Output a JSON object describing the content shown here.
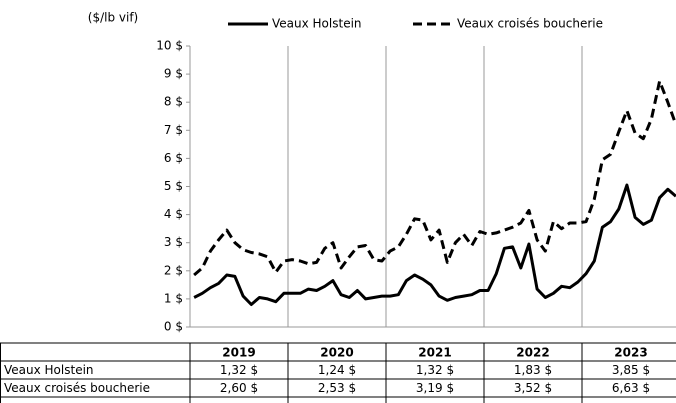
{
  "chart_data": {
    "type": "line",
    "ylabel": "($/lb vif)",
    "ylim": [
      0,
      10
    ],
    "yticks": [
      {
        "value": 0,
        "label": "0 $"
      },
      {
        "value": 1,
        "label": "1 $"
      },
      {
        "value": 2,
        "label": "2 $"
      },
      {
        "value": 3,
        "label": "3 $"
      },
      {
        "value": 4,
        "label": "4 $"
      },
      {
        "value": 5,
        "label": "5 $"
      },
      {
        "value": 6,
        "label": "6 $"
      },
      {
        "value": 7,
        "label": "7 $"
      },
      {
        "value": 8,
        "label": "8 $"
      },
      {
        "value": 9,
        "label": "9 $"
      },
      {
        "value": 10,
        "label": "10 $"
      }
    ],
    "series": [
      {
        "name": "Veaux Holstein",
        "color": "#000000",
        "dash": false,
        "values": [
          1.05,
          1.2,
          1.4,
          1.55,
          1.85,
          1.8,
          1.1,
          0.8,
          1.05,
          1.0,
          0.9,
          1.2,
          1.2,
          1.2,
          1.35,
          1.3,
          1.45,
          1.65,
          1.15,
          1.05,
          1.3,
          1.0,
          1.05,
          1.1,
          1.1,
          1.15,
          1.65,
          1.85,
          1.7,
          1.5,
          1.1,
          0.95,
          1.05,
          1.1,
          1.15,
          1.3,
          1.3,
          1.9,
          2.8,
          2.85,
          2.1,
          2.95,
          1.35,
          1.05,
          1.2,
          1.45,
          1.4,
          1.6,
          1.9,
          2.35,
          3.55,
          3.75,
          4.2,
          5.05,
          3.9,
          3.65,
          3.8,
          4.6,
          4.9,
          4.65
        ]
      },
      {
        "name": "Veaux croisés boucherie",
        "color": "#000000",
        "dash": true,
        "values": [
          1.85,
          2.1,
          2.7,
          3.1,
          3.45,
          3.0,
          2.75,
          2.65,
          2.6,
          2.5,
          1.95,
          2.35,
          2.4,
          2.35,
          2.25,
          2.3,
          2.8,
          3.0,
          2.1,
          2.5,
          2.85,
          2.9,
          2.4,
          2.35,
          2.7,
          2.85,
          3.3,
          3.85,
          3.8,
          3.1,
          3.45,
          2.3,
          3.0,
          3.3,
          2.9,
          3.4,
          3.3,
          3.35,
          3.45,
          3.55,
          3.7,
          4.15,
          3.1,
          2.7,
          3.75,
          3.5,
          3.7,
          3.7,
          3.75,
          4.55,
          5.95,
          6.15,
          6.95,
          7.7,
          6.9,
          6.7,
          7.4,
          8.75,
          8.0,
          7.2
        ]
      }
    ],
    "table": {
      "columns": [
        "2019",
        "2020",
        "2021",
        "2022",
        "2023"
      ],
      "rows": [
        {
          "label": "Veaux Holstein",
          "values": [
            "1,32 $",
            "1,24 $",
            "1,32 $",
            "1,83 $",
            "3,85 $"
          ]
        },
        {
          "label": "Veaux croisés boucherie",
          "values": [
            "2,60 $",
            "2,53 $",
            "3,19 $",
            "3,52 $",
            "6,63 $"
          ]
        }
      ]
    }
  }
}
